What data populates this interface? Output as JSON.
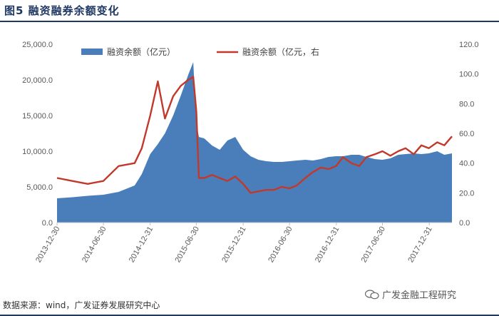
{
  "title": "图5  融资融券余额变化",
  "source": "数据来源：wind，广发证券发展研究中心",
  "watermark": "广发金融工程研究",
  "colors": {
    "area": "#4a7ebb",
    "line": "#c0392b",
    "rule": "#1f3864"
  },
  "chart_data": {
    "type": "area",
    "x_tick_labels": [
      "2013-12-30",
      "2014-06-30",
      "2014-12-31",
      "2015-06-30",
      "2015-12-31",
      "2016-06-30",
      "2016-12-31",
      "2017-06-30",
      "2017-12-31"
    ],
    "y_left_ticks": [
      "0.0",
      "5,000.0",
      "10,000.0",
      "15,000.0",
      "20,000.0",
      "25,000.0"
    ],
    "y_right_ticks": [
      "0.0",
      "20.0",
      "40.0",
      "60.0",
      "80.0",
      "100.0",
      "120.0"
    ],
    "ylim_left": [
      0,
      25000
    ],
    "ylim_right": [
      0,
      120
    ],
    "x": [
      "2013-12-30",
      "2014-02-28",
      "2014-04-30",
      "2014-06-30",
      "2014-08-29",
      "2014-10-31",
      "2014-11-28",
      "2014-12-31",
      "2015-01-30",
      "2015-02-27",
      "2015-03-31",
      "2015-04-30",
      "2015-05-29",
      "2015-06-18",
      "2015-06-30",
      "2015-07-10",
      "2015-07-31",
      "2015-08-31",
      "2015-09-30",
      "2015-10-30",
      "2015-11-30",
      "2015-12-31",
      "2016-01-29",
      "2016-02-29",
      "2016-03-31",
      "2016-04-29",
      "2016-05-31",
      "2016-06-30",
      "2016-07-29",
      "2016-08-31",
      "2016-09-30",
      "2016-10-31",
      "2016-11-30",
      "2016-12-30",
      "2017-01-26",
      "2017-02-28",
      "2017-03-31",
      "2017-04-28",
      "2017-05-31",
      "2017-06-30",
      "2017-07-31",
      "2017-08-31",
      "2017-09-29",
      "2017-10-31",
      "2017-11-30",
      "2017-12-29",
      "2018-01-31",
      "2018-02-28",
      "2018-03-30"
    ],
    "series": [
      {
        "name": "融资余额（亿元）",
        "axis": "left",
        "values": [
          3400,
          3550,
          3750,
          3900,
          4300,
          5200,
          6800,
          9600,
          11000,
          12500,
          15000,
          17800,
          20700,
          22500,
          14000,
          12000,
          11800,
          10800,
          10200,
          11500,
          12000,
          10200,
          9300,
          8800,
          8600,
          8500,
          8500,
          8600,
          8700,
          8800,
          8700,
          8900,
          9200,
          9300,
          9300,
          9500,
          9500,
          9200,
          8900,
          8800,
          9000,
          9500,
          9600,
          9700,
          9600,
          9700,
          10000,
          9500,
          9700
        ]
      },
      {
        "name": "融资余额（亿元，右",
        "axis": "right",
        "values": [
          30,
          28,
          26,
          28,
          38,
          40,
          50,
          72,
          95,
          70,
          85,
          92,
          96,
          98,
          75,
          30,
          30,
          32,
          30,
          28,
          31,
          26,
          20,
          21,
          22,
          22,
          24,
          23,
          25,
          30,
          34,
          37,
          36,
          38,
          44,
          40,
          38,
          44,
          46,
          48,
          45,
          48,
          50,
          46,
          52,
          50,
          54,
          52,
          58
        ]
      }
    ]
  }
}
